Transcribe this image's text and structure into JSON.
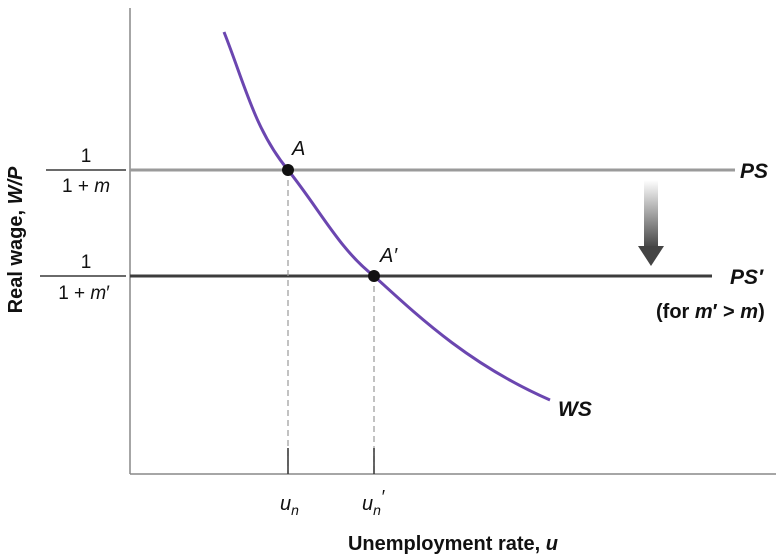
{
  "axes": {
    "y_label": {
      "main": "Real wage, ",
      "var": "W/P"
    },
    "x_label": {
      "main": "Unemployment rate, ",
      "var": "u"
    }
  },
  "y_ticks": {
    "ps": {
      "numerator": "1",
      "denominator": "1 + m"
    },
    "ps_prime": {
      "numerator": "1",
      "denominator": "1 + m′"
    }
  },
  "x_ticks": {
    "un": {
      "base": "u",
      "sub": "n",
      "prime": ""
    },
    "un_prime": {
      "base": "u",
      "sub": "n",
      "prime": "′"
    }
  },
  "curves": {
    "ws": {
      "label": "WS",
      "color": "#6b46b0"
    },
    "ps": {
      "label": "PS",
      "color": "#9a9a9a"
    },
    "ps_prime": {
      "label": "PS′",
      "note": "(for m′ > m)",
      "color": "#3c3c3c"
    }
  },
  "points": {
    "a": {
      "label": "A"
    },
    "a_prime": {
      "label": "A′"
    }
  },
  "shift_arrow": {
    "direction": "down",
    "color": "#444444"
  }
}
